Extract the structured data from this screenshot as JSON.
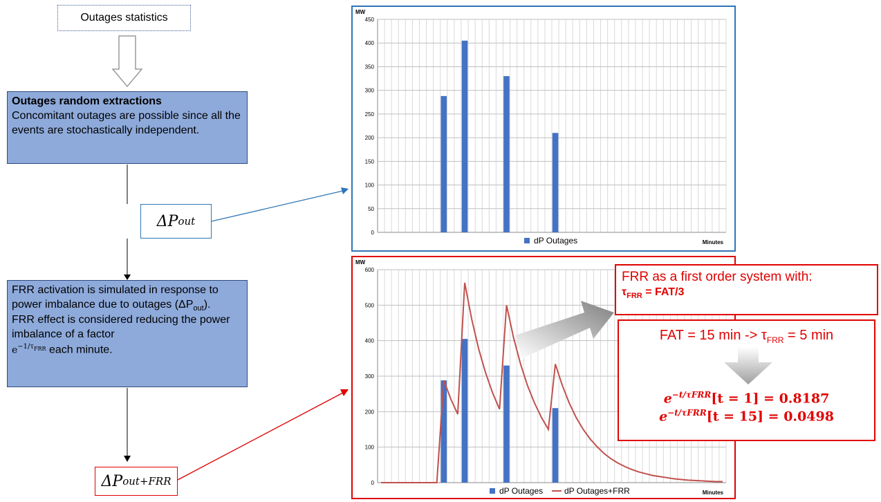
{
  "title": "Outages statistics",
  "box1": {
    "heading": "Outages random extractions",
    "text": "Concomitant outages are possible since all the events are stochastically independent."
  },
  "box2": {
    "line1": "FRR activation is simulated in response to power imbalance due to outages (ΔP",
    "sub_out": "out",
    "line2": ").",
    "line3": "FRR effect is considered reducing the power imbalance of a factor",
    "factor": "e",
    "factor_exp": "−1/τ",
    "factor_sub": "FRR",
    "line4": " each minute."
  },
  "dp_out": {
    "delta": "ΔP",
    "sub": "out"
  },
  "dp_out_frr": {
    "delta": "ΔP",
    "sub": "out+FRR"
  },
  "frr_box": {
    "line1": "FRR as a first order system with:",
    "tau": "τ",
    "tau_sub": "FRR",
    "tau_value": " = FAT/3"
  },
  "fat_box": {
    "fat_text": "FAT = 15 min -> τ",
    "fat_sub": "FRR",
    "fat_tail": " = 5 min",
    "eq1_base": "e",
    "eq1_exp": "−t/τFRR",
    "eq1_text": "[t = 1] = 0.8187",
    "eq2_base": "e",
    "eq2_exp": "−t/τFRR",
    "eq2_text": "[t = 15] = 0.0498"
  },
  "colors": {
    "bar": "#4472c4",
    "line": "#c0504d",
    "blue_box": "#8eaadb",
    "red": "#e00000",
    "blue_border": "#2e75b6"
  },
  "chart_data": [
    {
      "type": "bar",
      "ylabel": "MW",
      "xlabel": "Minutes",
      "ylim": [
        0,
        450
      ],
      "yticks": [
        0,
        50,
        100,
        150,
        200,
        250,
        300,
        350,
        400,
        450
      ],
      "x_count": 50,
      "grid": true,
      "legend": "bottom",
      "series": [
        {
          "name": "dP Outages",
          "points": [
            [
              9,
              288
            ],
            [
              12,
              405
            ],
            [
              18,
              330
            ],
            [
              25,
              210
            ]
          ]
        }
      ]
    },
    {
      "type": "bar+line",
      "ylabel": "MW",
      "xlabel": "Minutes",
      "ylim": [
        0,
        600
      ],
      "yticks": [
        0,
        100,
        200,
        300,
        400,
        500,
        600
      ],
      "x_count": 50,
      "grid": true,
      "legend": "bottom",
      "series": [
        {
          "name": "dP Outages",
          "kind": "bar",
          "points": [
            [
              9,
              288
            ],
            [
              12,
              405
            ],
            [
              18,
              330
            ],
            [
              25,
              210
            ]
          ]
        },
        {
          "name": "dP Outages+FRR",
          "kind": "line",
          "values": [
            0,
            0,
            0,
            0,
            0,
            0,
            0,
            0,
            0,
            288,
            236,
            193,
            563,
            461,
            377,
            309,
            253,
            207,
            500,
            409,
            335,
            274,
            225,
            184,
            150,
            334,
            274,
            224,
            183,
            150,
            123,
            101,
            82,
            67,
            55,
            45,
            37,
            30,
            25,
            20,
            17,
            14,
            11,
            9,
            7,
            6,
            5,
            4,
            3,
            3
          ]
        }
      ]
    }
  ]
}
